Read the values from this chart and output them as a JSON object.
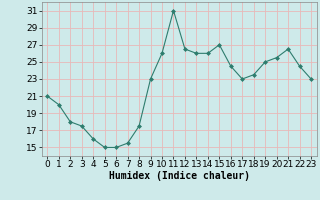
{
  "x": [
    0,
    1,
    2,
    3,
    4,
    5,
    6,
    7,
    8,
    9,
    10,
    11,
    12,
    13,
    14,
    15,
    16,
    17,
    18,
    19,
    20,
    21,
    22,
    23
  ],
  "y": [
    21,
    20,
    18,
    17.5,
    16,
    15,
    15,
    15.5,
    17.5,
    23,
    26,
    31,
    26.5,
    26,
    26,
    27,
    24.5,
    23,
    23.5,
    25,
    25.5,
    26.5,
    24.5,
    23
  ],
  "line_color": "#2e7d6e",
  "marker": "D",
  "marker_size": 2.0,
  "bg_color": "#ceeaea",
  "grid_color": "#e8b8b8",
  "xlabel": "Humidex (Indice chaleur)",
  "ylim": [
    14,
    32
  ],
  "yticks": [
    15,
    17,
    19,
    21,
    23,
    25,
    27,
    29,
    31
  ],
  "xticks": [
    0,
    1,
    2,
    3,
    4,
    5,
    6,
    7,
    8,
    9,
    10,
    11,
    12,
    13,
    14,
    15,
    16,
    17,
    18,
    19,
    20,
    21,
    22,
    23
  ],
  "xlabel_fontsize": 7,
  "tick_fontsize": 6.5
}
